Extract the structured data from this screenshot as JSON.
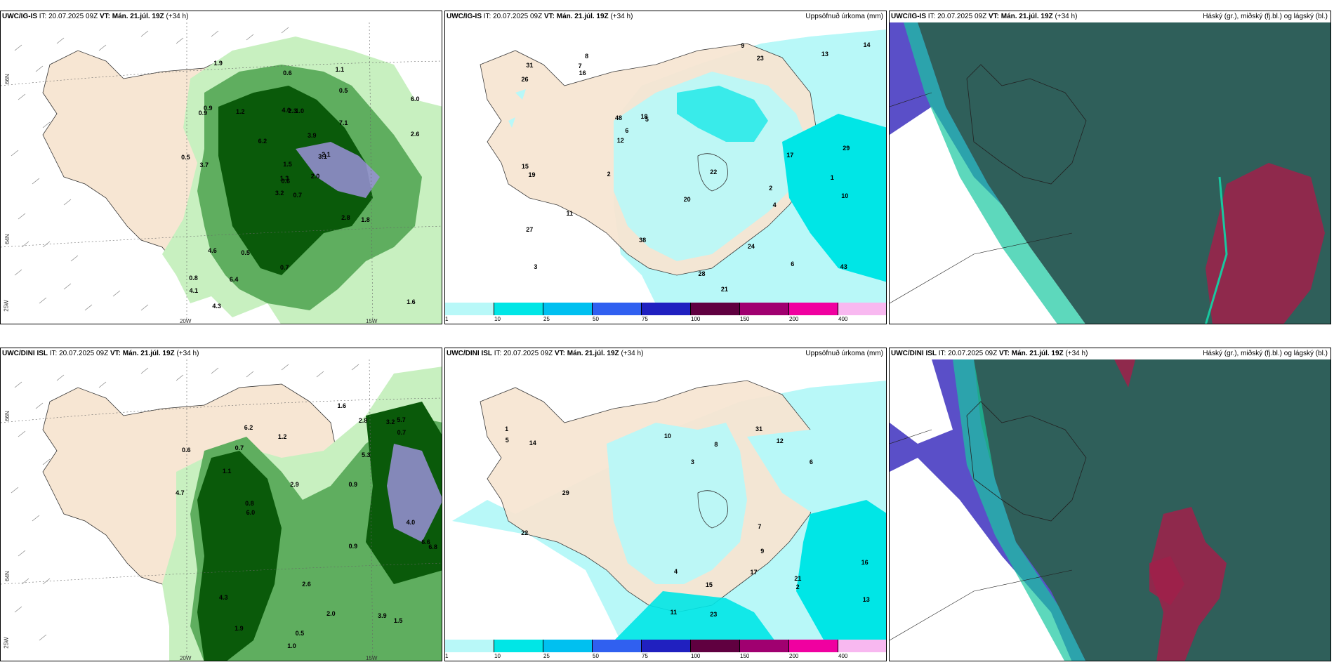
{
  "top": {
    "left": {
      "model": "UWC/IG-IS",
      "it_label": "IT:",
      "it_value": "20.07.2025 09Z",
      "vt_label": "VT:",
      "vt_value": "Mán. 21.júl. 19Z",
      "lead": "(+34 h)",
      "right": ""
    },
    "middle": {
      "model": "UWC/IG-IS",
      "it_label": "IT:",
      "it_value": "20.07.2025 09Z",
      "vt_label": "VT:",
      "vt_value": "Mán. 21.júl. 19Z",
      "lead": "(+34 h)",
      "right": "Uppsöfnuð úrkoma (mm)"
    },
    "right": {
      "model": "UWC/IG-IS",
      "it_label": "IT:",
      "it_value": "20.07.2025 09Z",
      "vt_label": "VT:",
      "vt_value": "Mán. 21.júl. 19Z",
      "lead": "(+34 h)",
      "right": "Háský (gr.), miðský (fj.bl.) og lágský (bl.)"
    }
  },
  "bottom": {
    "left": {
      "model": "UWC/DINI ISL",
      "it_label": "IT:",
      "it_value": "20.07.2025 09Z",
      "vt_label": "VT:",
      "vt_value": "Mán. 21.júl. 19Z",
      "lead": "(+34 h)",
      "right": ""
    },
    "middle": {
      "model": "UWC/DINI ISL",
      "it_label": "IT:",
      "it_value": "20.07.2025 09Z",
      "vt_label": "VT:",
      "vt_value": "Mán. 21.júl. 19Z",
      "lead": "(+34 h)",
      "right": "Uppsöfnuð úrkoma (mm)"
    },
    "right": {
      "model": "UWC/DINI ISL",
      "it_label": "IT:",
      "it_value": "20.07.2025 09Z",
      "vt_label": "VT:",
      "vt_value": "Mán. 21.júl. 19Z",
      "lead": "(+34 h)",
      "right": "Háský (gr.), miðský (fj.bl.) og lágský (bl.)"
    }
  },
  "axes": {
    "lat_66": "66N",
    "lat_64": "64N",
    "lon_25": "25W",
    "lon_20": "20W",
    "lon_15": "15W"
  },
  "colorbar": {
    "labels": [
      "1",
      "10",
      "25",
      "50",
      "75",
      "100",
      "150",
      "200",
      "400"
    ],
    "colors": [
      "#b8f8f8",
      "#00e6e6",
      "#00c0f0",
      "#3060f0",
      "#2020c0",
      "#600040",
      "#a00070",
      "#f000a0",
      "#f8b8f0"
    ]
  },
  "colors": {
    "land": "#f7e6d3",
    "precip_light": "#b8f8f8",
    "precip_medium": "#00e6e6",
    "green_light": "#c8f0c0",
    "green_mid": "#5fae5f",
    "green_dark": "#0a5a0a",
    "cloud_high": "#2f5f5a",
    "cloud_mid": "#5a4fc8",
    "cloud_low_red": "#a0204a"
  },
  "labels": {
    "topLeftPrecip": [
      "0.7",
      "0.9",
      "0.6",
      "0.8",
      "3.1",
      "0.5",
      "1.1",
      "1.0",
      "0.5",
      "2.0",
      "1.9",
      "1.6",
      "3.7",
      "6.0",
      "3.2",
      "7.1",
      "4.3",
      "4.0",
      "3.9",
      "4.6",
      "6.2",
      "4.1",
      "6.4",
      "2.3",
      "2.1",
      "1.8",
      "0.9",
      "0.6",
      "0.5",
      "2.8",
      "2.6",
      "1.3",
      "0.7",
      "1.5",
      "1.2"
    ],
    "topMiddlePrecip": [
      "2",
      "1",
      "3",
      "8",
      "5",
      "6",
      "27",
      "23",
      "48",
      "21",
      "26",
      "15",
      "31",
      "43",
      "38",
      "29",
      "20",
      "22",
      "18",
      "11",
      "14",
      "13",
      "12",
      "10",
      "9",
      "7",
      "4",
      "19",
      "16",
      "17",
      "28",
      "24",
      "6",
      "2"
    ],
    "bottomLeftPrecip": [
      "0.6",
      "0.7",
      "0.9",
      "0.5",
      "3.2",
      "1.0",
      "0.9",
      "6.0",
      "5.7",
      "6.8",
      "6.6",
      "6.2",
      "5.3",
      "4.3",
      "4.7",
      "1.9",
      "0.8",
      "1.2",
      "1.5",
      "2.0",
      "3.9",
      "4.0",
      "2.9",
      "2.6",
      "2.8",
      "1.1",
      "0.7",
      "1.6"
    ],
    "bottomMiddlePrecip": [
      "3",
      "2",
      "1",
      "6",
      "11",
      "10",
      "23",
      "31",
      "29",
      "22",
      "21",
      "8",
      "7",
      "14",
      "13",
      "12",
      "16",
      "17",
      "15",
      "9",
      "5",
      "4"
    ]
  }
}
